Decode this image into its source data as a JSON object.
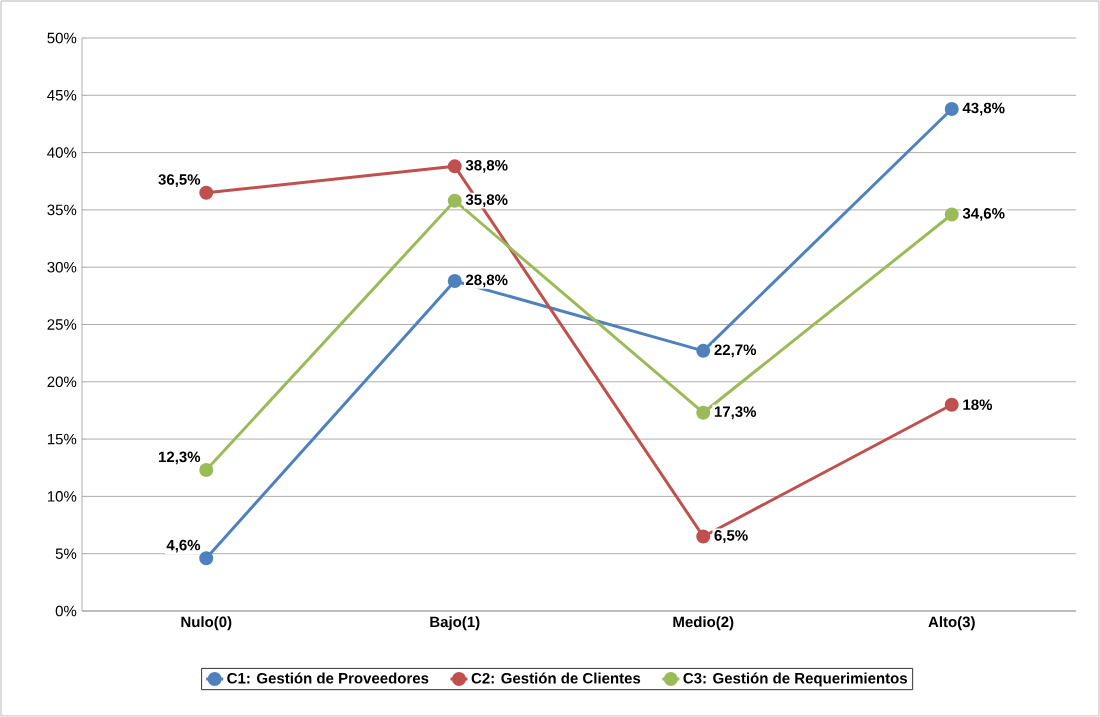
{
  "chart_data": {
    "type": "line",
    "categories": [
      "Nulo(0)",
      "Bajo(1)",
      "Medio(2)",
      "Alto(3)"
    ],
    "series": [
      {
        "name": "C1: Gestión de Proveedores",
        "color": "#4f81bd",
        "values": [
          4.6,
          28.8,
          22.7,
          43.8
        ],
        "value_labels": [
          "4,6%",
          "28,8%",
          "22,7%",
          "43,8%"
        ]
      },
      {
        "name": "C2: Gestión de Clientes",
        "color": "#c0504d",
        "values": [
          36.5,
          38.8,
          6.5,
          18
        ],
        "value_labels": [
          "36,5%",
          "38,8%",
          "6,5%",
          "18%"
        ]
      },
      {
        "name": "C3: Gestión de Requerimientos",
        "color": "#9bbb59",
        "values": [
          12.3,
          35.8,
          17.3,
          34.6
        ],
        "value_labels": [
          "12,3%",
          "35,8%",
          "17,3%",
          "34,6%"
        ]
      }
    ],
    "ylim": [
      0,
      50
    ],
    "yticks": [
      {
        "value": 0,
        "label": "0%"
      },
      {
        "value": 5,
        "label": "5%"
      },
      {
        "value": 10,
        "label": "10%"
      },
      {
        "value": 15,
        "label": "15%"
      },
      {
        "value": 20,
        "label": "20%"
      },
      {
        "value": 25,
        "label": "25%"
      },
      {
        "value": 30,
        "label": "30%"
      },
      {
        "value": 35,
        "label": "35%"
      },
      {
        "value": 40,
        "label": "40%"
      },
      {
        "value": 45,
        "label": "45%"
      },
      {
        "value": 50,
        "label": "50%"
      }
    ],
    "grid": "y",
    "legend": "bottom",
    "marker": "circle",
    "line_style": "solid"
  }
}
